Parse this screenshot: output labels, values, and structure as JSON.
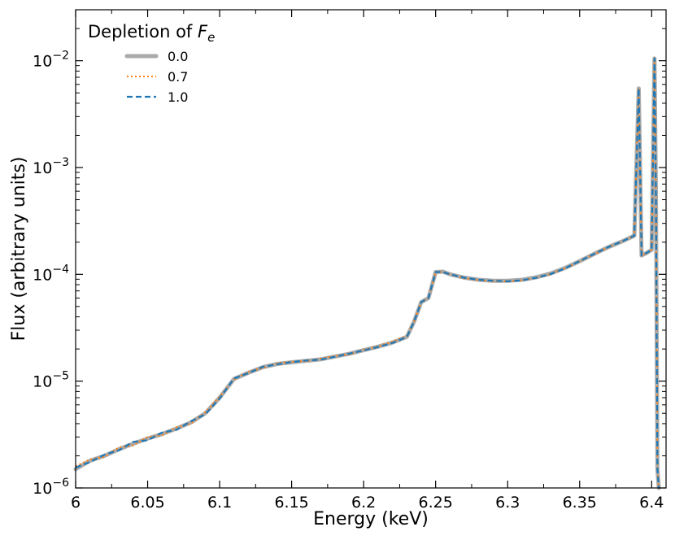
{
  "chart_data": {
    "type": "line",
    "title": "",
    "xlabel": "Energy (keV)",
    "ylabel": "Flux (arbitrary units)",
    "xlim": [
      6.0,
      6.41
    ],
    "ylim": [
      1e-06,
      0.03
    ],
    "yscale": "log",
    "grid": false,
    "x_ticks": [
      6.0,
      6.05,
      6.1,
      6.15,
      6.2,
      6.25,
      6.3,
      6.35,
      6.4
    ],
    "x_tick_labels": [
      "6",
      "6.05",
      "6.1",
      "6.15",
      "6.2",
      "6.25",
      "6.3",
      "6.35",
      "6.4"
    ],
    "y_ticks": [
      {
        "value": 1e-06,
        "base": "10",
        "exp": "−6"
      },
      {
        "value": 1e-05,
        "base": "10",
        "exp": "−5"
      },
      {
        "value": 0.0001,
        "base": "10",
        "exp": "−4"
      },
      {
        "value": 0.001,
        "base": "10",
        "exp": "−3"
      },
      {
        "value": 0.01,
        "base": "10",
        "exp": "−2"
      }
    ],
    "legend": {
      "title_prefix": "Depletion of ",
      "title_symbol": "F",
      "title_subscript": "e",
      "placement": "top-left"
    },
    "x": [
      6.0,
      6.01,
      6.02,
      6.03,
      6.04,
      6.05,
      6.06,
      6.07,
      6.08,
      6.09,
      6.1,
      6.11,
      6.12,
      6.13,
      6.14,
      6.15,
      6.16,
      6.17,
      6.18,
      6.19,
      6.2,
      6.21,
      6.22,
      6.23,
      6.235,
      6.24,
      6.245,
      6.25,
      6.255,
      6.26,
      6.27,
      6.28,
      6.29,
      6.3,
      6.31,
      6.32,
      6.33,
      6.34,
      6.35,
      6.36,
      6.37,
      6.38,
      6.388,
      6.391,
      6.393,
      6.397,
      6.4,
      6.402,
      6.403,
      6.404,
      6.405
    ],
    "series": [
      {
        "name": "0.0",
        "color": "#aaaaaa",
        "style": "solid",
        "values": [
          1.5e-06,
          1.8e-06,
          2e-06,
          2.3e-06,
          2.6e-06,
          2.9e-06,
          3.2e-06,
          3.6e-06,
          4.1e-06,
          5e-06,
          7e-06,
          1.05e-05,
          1.2e-05,
          1.35e-05,
          1.45e-05,
          1.5e-05,
          1.55e-05,
          1.6e-05,
          1.7e-05,
          1.8e-05,
          1.95e-05,
          2.1e-05,
          2.3e-05,
          2.6e-05,
          3.6e-05,
          5.5e-05,
          6e-05,
          0.000105,
          0.000106,
          0.0001,
          9.3e-05,
          8.9e-05,
          8.7e-05,
          8.7e-05,
          8.9e-05,
          9.4e-05,
          0.000102,
          0.000115,
          0.000133,
          0.000155,
          0.00018,
          0.000205,
          0.00023,
          0.0055,
          0.00015,
          0.00016,
          0.00017,
          0.0105,
          0.0005,
          1.5e-06,
          1e-06
        ]
      },
      {
        "name": "0.7",
        "color": "#ff7f0e",
        "style": "dotted",
        "values": [
          1.6e-06,
          1.85e-06,
          1.95e-06,
          2.4e-06,
          2.5e-06,
          3e-06,
          3.1e-06,
          3.7e-06,
          4e-06,
          5.1e-06,
          7.2e-06,
          1.04e-05,
          1.22e-05,
          1.33e-05,
          1.47e-05,
          1.52e-05,
          1.54e-05,
          1.62e-05,
          1.72e-05,
          1.78e-05,
          1.97e-05,
          2.12e-05,
          2.35e-05,
          2.65e-05,
          3.6e-05,
          5.5e-05,
          6e-05,
          0.000105,
          0.000105,
          0.0001,
          9.2e-05,
          8.8e-05,
          8.6e-05,
          8.6e-05,
          8.8e-05,
          9.3e-05,
          0.000101,
          0.000114,
          0.000132,
          0.000154,
          0.00018,
          0.000205,
          0.00023,
          0.0055,
          0.00015,
          0.00016,
          0.00017,
          0.0105,
          0.0005,
          1.5e-06,
          1e-06
        ]
      },
      {
        "name": "1.0",
        "color": "#1f77b4",
        "style": "dashed",
        "values": [
          1.55e-06,
          1.75e-06,
          2.05e-06,
          2.25e-06,
          2.7e-06,
          2.8e-06,
          3.3e-06,
          3.5e-06,
          4.2e-06,
          4.9e-06,
          6.9e-06,
          1.06e-05,
          1.19e-05,
          1.36e-05,
          1.44e-05,
          1.51e-05,
          1.56e-05,
          1.59e-05,
          1.69e-05,
          1.81e-05,
          1.94e-05,
          2.09e-05,
          2.28e-05,
          2.6e-05,
          3.6e-05,
          5.5e-05,
          6e-05,
          0.000105,
          0.000105,
          0.0001,
          9.3e-05,
          8.9e-05,
          8.7e-05,
          8.6e-05,
          8.8e-05,
          9.3e-05,
          0.000101,
          0.000114,
          0.000133,
          0.000155,
          0.00018,
          0.000205,
          0.00023,
          0.0055,
          0.00015,
          0.00016,
          0.00017,
          0.0105,
          0.0005,
          1.5e-06,
          1e-06
        ]
      }
    ]
  }
}
